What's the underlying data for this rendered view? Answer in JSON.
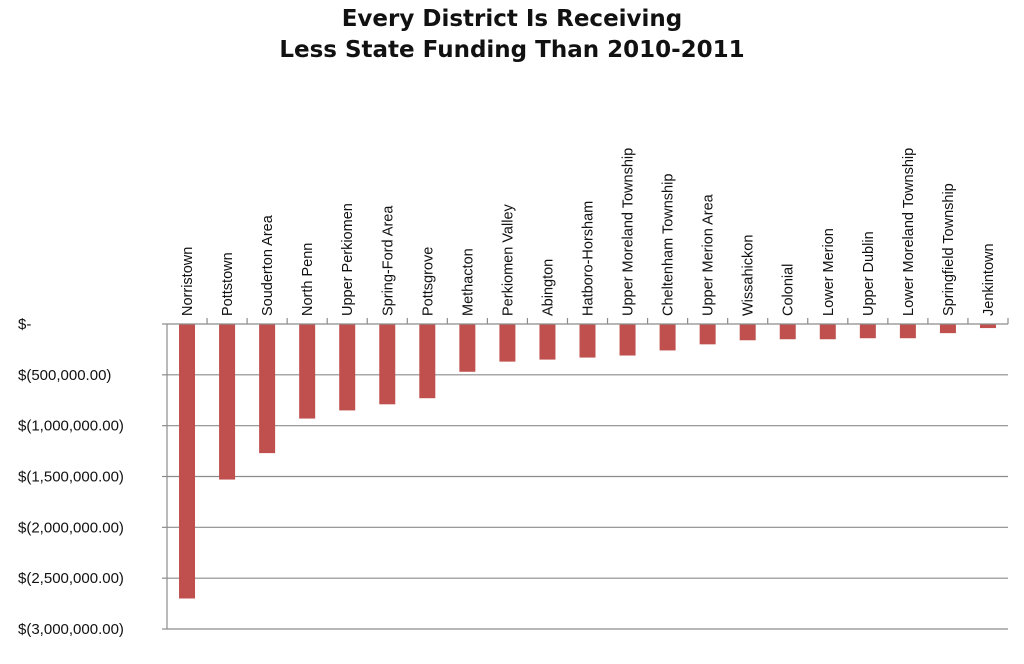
{
  "chart_data": {
    "type": "bar",
    "title_lines": [
      "Every District Is Receiving",
      "Less State Funding Than 2010-2011"
    ],
    "xlabel": "",
    "ylabel": "",
    "categories": [
      "Norristown",
      "Pottstown",
      "Souderton Area",
      "North Penn",
      "Upper Perkiomen",
      "Spring-Ford Area",
      "Pottsgrove",
      "Methacton",
      "Perkiomen Valley",
      "Abington",
      "Hatboro-Horsham",
      "Upper Moreland Township",
      "Cheltenham Township",
      "Upper Merion Area",
      "Wissahickon",
      "Colonial",
      "Lower Merion",
      "Upper Dublin",
      "Lower Moreland Township",
      "Springfield Township",
      "Jenkintown"
    ],
    "values": [
      -2700000,
      -1530000,
      -1270000,
      -930000,
      -850000,
      -790000,
      -730000,
      -470000,
      -370000,
      -350000,
      -330000,
      -310000,
      -260000,
      -200000,
      -160000,
      -150000,
      -150000,
      -140000,
      -140000,
      -90000,
      -40000
    ],
    "ylim": [
      -3000000,
      0
    ],
    "yticks": [
      0,
      -500000,
      -1000000,
      -1500000,
      -2000000,
      -2500000,
      -3000000
    ],
    "ytick_labels": [
      "$-",
      "$(500,000.00)",
      "$(1,000,000.00)",
      "$(1,500,000.00)",
      "$(2,000,000.00)",
      "$(2,500,000.00)",
      "$(3,000,000.00)"
    ],
    "grid": true,
    "legend": "none",
    "bar_color": "#c0504d"
  }
}
